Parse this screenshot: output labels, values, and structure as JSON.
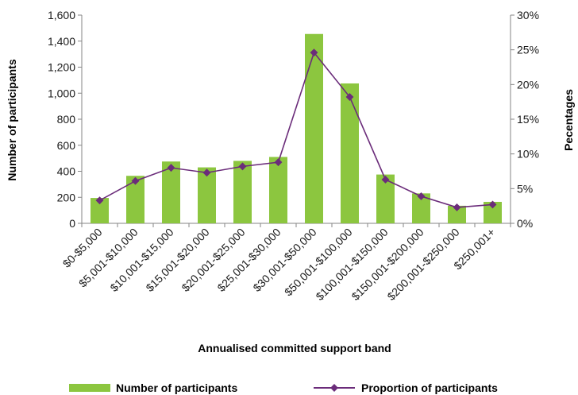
{
  "chart_data": {
    "type": "bar",
    "categories": [
      "$0-$5,000",
      "$5,001-$10,000",
      "$10,001-$15,000",
      "$15,001-$20,000",
      "$20,001-$25,000",
      "$25,001-$30,000",
      "$30,001-$50,000",
      "$50,001-$100,000",
      "$100,001-$150,000",
      "$150,001-$200,000",
      "$200,001-$250,000",
      "$250,001+"
    ],
    "series": [
      {
        "name": "Number of participants",
        "type": "bar",
        "axis": "left",
        "color": "#8cc63f",
        "values": [
          195,
          365,
          475,
          430,
          480,
          510,
          1455,
          1075,
          375,
          230,
          135,
          165
        ]
      },
      {
        "name": "Proportion of participants",
        "type": "line",
        "axis": "right",
        "color": "#6b2c7a",
        "values": [
          3.3,
          6.1,
          8.0,
          7.3,
          8.2,
          8.8,
          24.6,
          18.2,
          6.3,
          3.9,
          2.3,
          2.7
        ]
      }
    ],
    "xlabel": "Annualised committed support band",
    "ylabel": "Number of participants",
    "y2label": "Pecentages",
    "ylim": [
      0,
      1600
    ],
    "y2lim": [
      0,
      30
    ],
    "yticks": [
      "0",
      "200",
      "400",
      "600",
      "800",
      "1,000",
      "1,200",
      "1,400",
      "1,600"
    ],
    "y2ticks": [
      "0%",
      "5%",
      "10%",
      "15%",
      "20%",
      "25%",
      "30%"
    ],
    "grid": false,
    "legend_position": "bottom"
  }
}
